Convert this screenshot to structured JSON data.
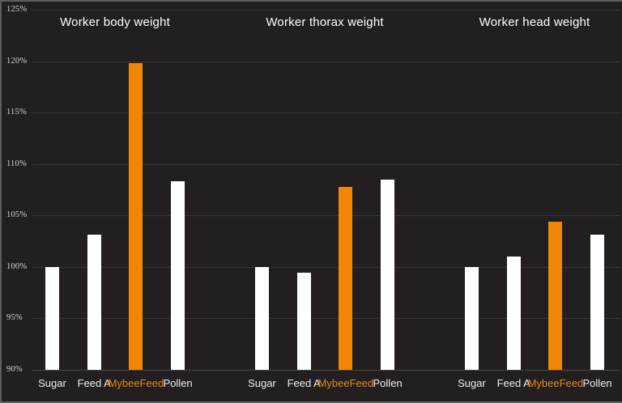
{
  "window": {
    "background": "#231F20",
    "frame_color": "#5E5C5C"
  },
  "chart_data": {
    "type": "bar",
    "description": "Three grouped bar panels comparing bee feeds, values relative to 100% baseline",
    "categories": [
      "Sugar",
      "Feed A",
      "MybeeFeed",
      "Pollen"
    ],
    "panels": [
      {
        "title": "Worker body weight",
        "values": [
          100.0,
          103.1,
          119.8,
          108.3
        ]
      },
      {
        "title": "Worker thorax weight",
        "values": [
          100.0,
          99.4,
          107.8,
          108.5
        ]
      },
      {
        "title": "Worker head weight",
        "values": [
          100.0,
          101.0,
          104.4,
          103.1
        ]
      }
    ],
    "y_axis": {
      "min": 90,
      "max": 125,
      "step": 5,
      "format": "percent",
      "tick_labels": [
        "90%",
        "95%",
        "100%",
        "105%",
        "110%",
        "115%",
        "120%",
        "125%"
      ]
    },
    "grid": true,
    "legend": "none",
    "highlight_category": "MybeeFeed",
    "colors": {
      "bar_default": "#FFFFFF",
      "bar_highlight": "#F28705",
      "highlight_label": "#E8861B",
      "background": "#231F20",
      "gridline": "#3A3536",
      "baseline": "#4A4546",
      "axis_tick_label": "#D6D2CF",
      "panel_title": "#FFFFFF",
      "category_label": "#F0EEEC"
    }
  }
}
